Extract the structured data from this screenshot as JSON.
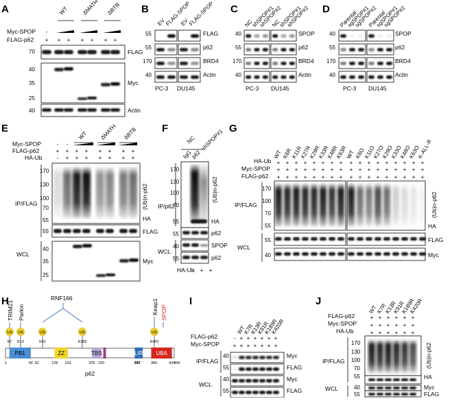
{
  "panels": {
    "A": {
      "letter": "A",
      "groups": [
        "WT",
        "ΔMATH",
        "ΔBTB"
      ],
      "row_labels": [
        "Myc-SPOP",
        "FLAG-p62"
      ],
      "myc_signs": [
        "-",
        "+",
        "+",
        "+",
        "+",
        "+",
        "+"
      ],
      "flag_signs": [
        "+",
        "+",
        "+",
        "+",
        "+",
        "+",
        "+"
      ],
      "blots": [
        "FLAG",
        "Myc",
        "Actin"
      ],
      "mw_flag": [
        "70"
      ],
      "mw_myc": [
        "40",
        "35",
        "25"
      ],
      "mw_actin": [
        "40"
      ]
    },
    "B": {
      "letter": "B",
      "lanes": [
        "EV",
        "FLAG-SPOP",
        "EV",
        "FLAG-SPOP"
      ],
      "blots": [
        "FLAG",
        "p62",
        "BRD4",
        "Actin"
      ],
      "mw": [
        "55",
        "55",
        "170",
        "40"
      ],
      "cells": [
        "PC-3",
        "DU145"
      ]
    },
    "C": {
      "letter": "C",
      "lanes": [
        "NC",
        "shSPOP#1",
        "shSPOP#2",
        "NC",
        "shSPOP#1",
        "shSPOP#2"
      ],
      "blots": [
        "SPOP",
        "p62",
        "BRD4",
        "Actin"
      ],
      "mw": [
        "40",
        "55",
        "170",
        "40"
      ],
      "cells": [
        "PC-3",
        "DU145"
      ]
    },
    "D": {
      "letter": "D",
      "lanes": [
        "Parental",
        "sgSPOP#1",
        "sgSPOP#2",
        "Parental",
        "sgSPOP#1",
        "sgSPOP#2"
      ],
      "blots": [
        "SPOP",
        "p62",
        "BRD4",
        "Actin"
      ],
      "mw": [
        "40",
        "55",
        "170",
        "40"
      ],
      "cells": [
        "PC-3",
        "DU145"
      ]
    },
    "E": {
      "letter": "E",
      "groups": [
        "WT",
        "ΔMATH",
        "ΔBTB"
      ],
      "row_labels": [
        "Myc-SPOP",
        "FLAG-p62",
        "HA-Ub"
      ],
      "myc_signs": [
        "-",
        "-",
        "+",
        "+",
        "+",
        "+",
        "+",
        "+"
      ],
      "flag_signs": [
        "+",
        "+",
        "+",
        "+",
        "+",
        "+",
        "+",
        "+"
      ],
      "ha_signs": [
        "-",
        "+",
        "+",
        "+",
        "+",
        "+",
        "+",
        "+"
      ],
      "side_ip": "IP/FLAG",
      "side_wcl": "WCL",
      "ub_label": "(Ub)n-p62",
      "ha_label": "HA",
      "blots": [
        "FLAG",
        "Myc"
      ],
      "mw_ip": [
        "170",
        "130",
        "100",
        "70",
        "55"
      ],
      "mw_flag": [
        "55"
      ],
      "mw_myc": [
        "40",
        "35",
        "25"
      ]
    },
    "F": {
      "letter": "F",
      "lanes": [
        "IgG",
        "p62",
        "p62"
      ],
      "group": "NC",
      "group2": "shSPOP#1",
      "side_ip": "IP/p62",
      "side_wcl": "WCL",
      "ub_label": "(Ub)n-p62",
      "ha_label": "HA",
      "blots": [
        "p62",
        "SPOP",
        "p62"
      ],
      "bottom_label": "HA-Ub",
      "bottom_signs": [
        "-",
        "+",
        "+"
      ],
      "mw": [
        "170",
        "130",
        "100",
        "70",
        "55",
        "55",
        "40",
        "55"
      ]
    },
    "G": {
      "letter": "G",
      "lanes": [
        "WT",
        "K6R",
        "K11R",
        "K27R",
        "K29R",
        "K33R",
        "K48R",
        "K63R",
        "WT",
        "K6O",
        "K11O",
        "K27O",
        "K29O",
        "K33O",
        "K48O",
        "K63O",
        "K-ALL-R"
      ],
      "row_labels": [
        "HA-Ub",
        "Myc-SPOP",
        "FLAG-p62"
      ],
      "side_ip": "IP/FLAG",
      "side_wcl": "WCL",
      "ub_label": "(Ub)n-p62",
      "ha_label": "HA",
      "blots": [
        "FLAG",
        "Myc"
      ],
      "mw_ip": [
        "170",
        "100",
        "70",
        "55"
      ],
      "mw_wcl": [
        "55",
        "40"
      ]
    },
    "H": {
      "letter": "H",
      "title": "p62",
      "ub_label": "Ub",
      "e3": [
        {
          "name": "TRIM21",
          "site": "K7",
          "color": "#000000"
        },
        {
          "name": "Parkin",
          "site": "K13",
          "color": "#000000"
        },
        {
          "name": "RNF166",
          "site": "K91",
          "color": "#000000"
        },
        {
          "name": "RNF166b",
          "site": "K189",
          "color": "#000000"
        },
        {
          "name": "Keap1",
          "site": "K420",
          "color": "#000000"
        },
        {
          "name": "SPOP",
          "site": "",
          "color": "#d7261e"
        }
      ],
      "e3_names": [
        "TRIM21",
        "Parkin",
        "RNF166",
        "Keap1",
        "SPOP"
      ],
      "sites": [
        "K7",
        "K13",
        "K91",
        "K189",
        "K420"
      ],
      "domains": [
        {
          "name": "PB1",
          "color": "#4a8fd6"
        },
        {
          "name": "ZZ",
          "color": "#f2d52a"
        },
        {
          "name": "TBS",
          "color": "#b9a6d8"
        },
        {
          "name": "",
          "color": "#9b3b8a"
        },
        {
          "name": "LIR",
          "color": "#2f6fb5"
        },
        {
          "name": "UBA",
          "color": "#d7261e"
        }
      ],
      "positions": [
        "1",
        "66",
        "82",
        "128",
        "163",
        "225",
        "250",
        "337",
        "343",
        "380",
        "434",
        "440"
      ]
    },
    "I": {
      "letter": "I",
      "lanes": [
        "WT",
        "K7R",
        "K13R",
        "K91R",
        "K189R",
        "K420R"
      ],
      "row_labels": [
        "FLAG-p62",
        "Myc-SPOP"
      ],
      "flag_signs": [
        "-",
        "+",
        "+",
        "+",
        "+",
        "+",
        "+"
      ],
      "myc_signs": [
        "+",
        "+",
        "+",
        "+",
        "+",
        "+",
        "+"
      ],
      "side_ip": "IP/FLAG",
      "side_wcl": "WCL",
      "blots": [
        "Myc",
        "FLAG",
        "Myc",
        "FLAG"
      ],
      "mw": [
        "40",
        "55",
        "40",
        "55"
      ]
    },
    "J": {
      "letter": "J",
      "lanes": [
        "WT",
        "K7R",
        "K13R",
        "K91R",
        "K189R",
        "K420R"
      ],
      "row_labels": [
        "FLAG-p62",
        "Myc-SPOP",
        "HA-Ub"
      ],
      "side_ip": "IP/FLAG",
      "side_wcl": "WCL",
      "ub_label": "(Ub)n-p62",
      "ha_label": "HA",
      "blots": [
        "Myc",
        "FLAG"
      ],
      "mw_ip": [
        "170",
        "130",
        "100",
        "70",
        "55"
      ],
      "mw_wcl": [
        "40",
        "55"
      ]
    }
  },
  "colors": {
    "spop_red": "#d7261e",
    "ub_yellow": "#f2d52a"
  }
}
